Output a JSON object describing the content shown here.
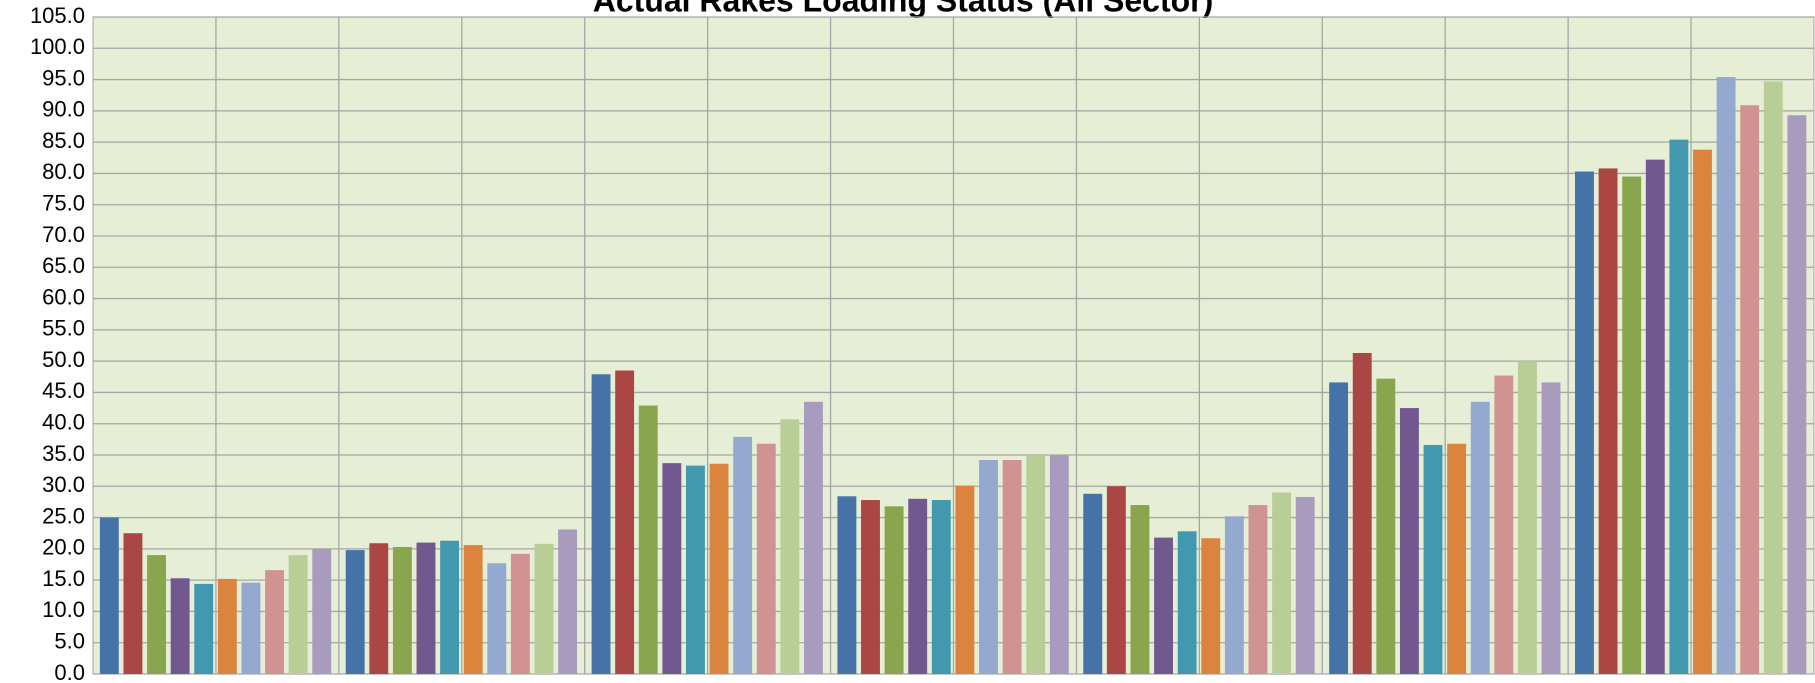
{
  "chart_data": {
    "type": "bar",
    "title": "Actual Rakes Loading Status (All Sector)",
    "categories": [
      null,
      null,
      null,
      null,
      null,
      null,
      null
    ],
    "series": [
      {
        "color": "#4572a7",
        "values": [
          25.0,
          19.8,
          47.9,
          28.4,
          28.8,
          46.6,
          80.3
        ]
      },
      {
        "color": "#aa4643",
        "values": [
          22.5,
          20.9,
          48.5,
          27.8,
          30.0,
          51.3,
          80.8
        ]
      },
      {
        "color": "#89a54e",
        "values": [
          19.0,
          20.3,
          42.9,
          26.8,
          27.0,
          47.2,
          79.5
        ]
      },
      {
        "color": "#71588f",
        "values": [
          15.3,
          21.0,
          33.7,
          28.0,
          21.8,
          42.5,
          82.2
        ]
      },
      {
        "color": "#4198af",
        "values": [
          14.4,
          21.3,
          33.3,
          27.8,
          22.8,
          36.6,
          85.4
        ]
      },
      {
        "color": "#db843d",
        "values": [
          15.2,
          20.6,
          33.6,
          30.1,
          21.7,
          36.8,
          83.8
        ]
      },
      {
        "color": "#93a9cf",
        "values": [
          14.6,
          17.7,
          37.9,
          34.2,
          25.2,
          43.5,
          95.4
        ]
      },
      {
        "color": "#d19392",
        "values": [
          16.6,
          19.2,
          36.8,
          34.2,
          27.0,
          47.7,
          90.9
        ]
      },
      {
        "color": "#b9cd96",
        "values": [
          19.0,
          20.8,
          40.7,
          35.0,
          29.0,
          50.0,
          94.7
        ]
      },
      {
        "color": "#a99bbd",
        "values": [
          20.0,
          23.1,
          43.5,
          35.0,
          28.3,
          46.6,
          89.3
        ]
      }
    ],
    "ylim": [
      0,
      105
    ],
    "yticks": [
      {
        "value": 0,
        "label": "0.0"
      },
      {
        "value": 5,
        "label": "5.0"
      },
      {
        "value": 10,
        "label": "10.0"
      },
      {
        "value": 15,
        "label": "15.0"
      },
      {
        "value": 20,
        "label": "20.0"
      },
      {
        "value": 25,
        "label": "25.0"
      },
      {
        "value": 30,
        "label": "30.0"
      },
      {
        "value": 35,
        "label": "35.0"
      },
      {
        "value": 40,
        "label": "40.0"
      },
      {
        "value": 45,
        "label": "45.0"
      },
      {
        "value": 50,
        "label": "50.0"
      },
      {
        "value": 55,
        "label": "55.0"
      },
      {
        "value": 60,
        "label": "60.0"
      },
      {
        "value": 65,
        "label": "65.0"
      },
      {
        "value": 70,
        "label": "70.0"
      },
      {
        "value": 75,
        "label": "75.0"
      },
      {
        "value": 80,
        "label": "80.0"
      },
      {
        "value": 85,
        "label": "85.0"
      },
      {
        "value": 90,
        "label": "90.0"
      },
      {
        "value": 95,
        "label": "95.0"
      },
      {
        "value": 100,
        "label": "100.0"
      },
      {
        "value": 105,
        "label": "105.0"
      }
    ],
    "grid": true
  }
}
